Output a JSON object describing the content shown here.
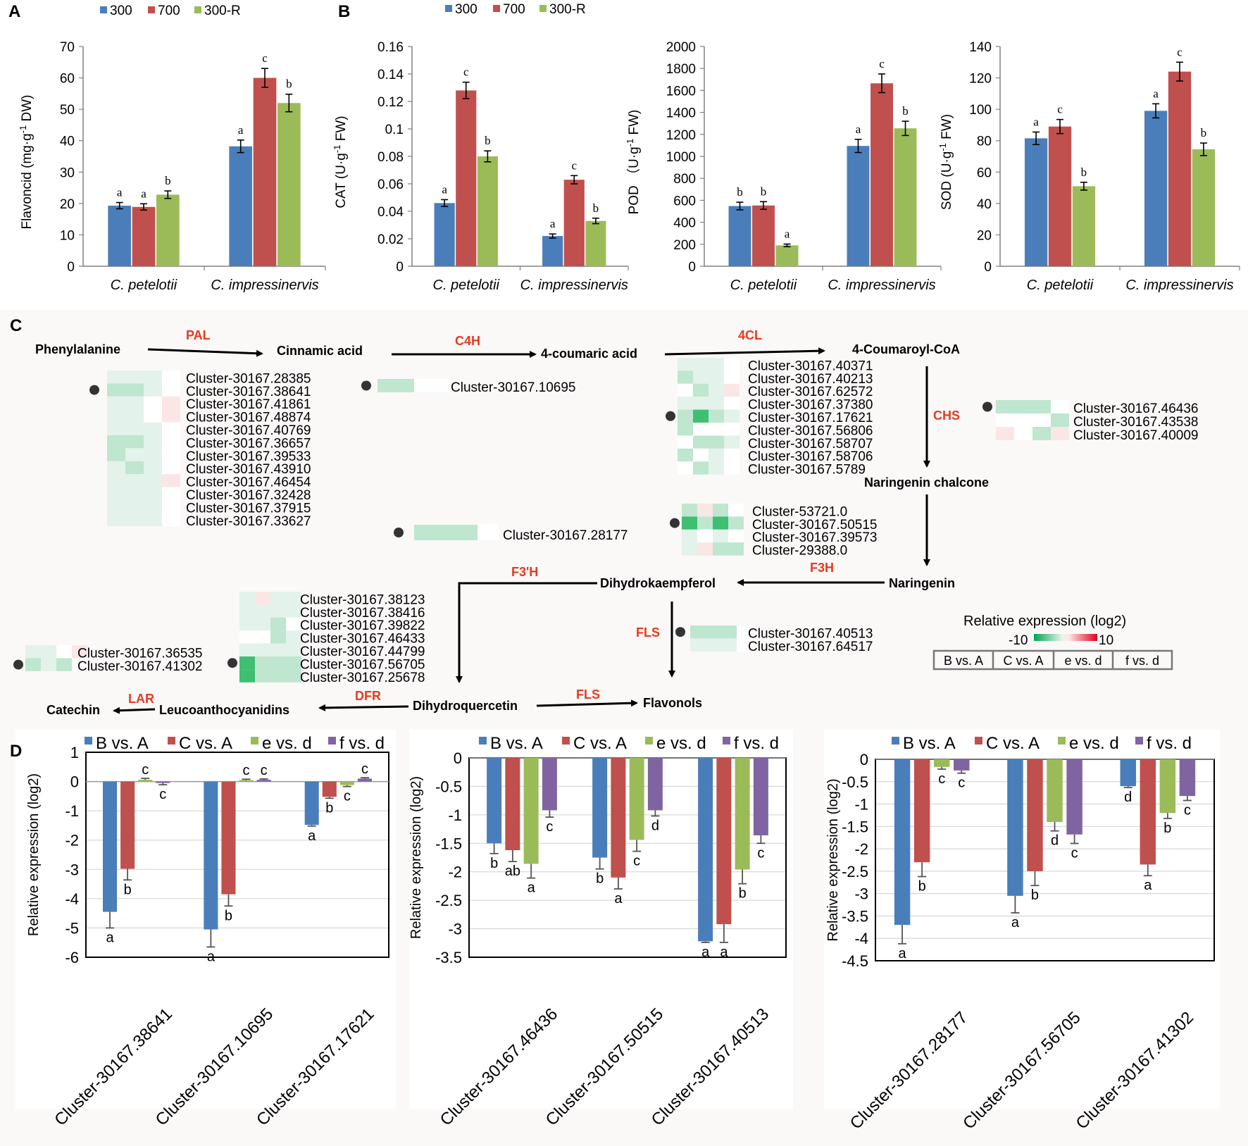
{
  "panel_labels": [
    "A",
    "B",
    "C",
    "D"
  ],
  "colors": {
    "blue": "#4a7ebb",
    "red": "#c0504d",
    "green": "#9bbb59",
    "purple": "#8064a2",
    "pathway_enzyme": "#e8391e",
    "heat_pale": "#e3f2ea",
    "heat_mid": "#bfe6cf",
    "heat_strong": "#3ebf72",
    "heat_red": "#fbe6e6"
  },
  "legend_ab": [
    "300",
    "700",
    "300-R"
  ],
  "legend_d": [
    "B vs. A",
    "C vs. A",
    "e vs. d",
    "f vs. d"
  ],
  "species": [
    "C. petelotii",
    "C. impressinervis"
  ],
  "chart_data": [
    {
      "id": "flavoncid",
      "panel": "A",
      "type": "bar",
      "ylabel_main": "Flavoncid (mg·g",
      "ylabel_sup": "-1",
      "ylabel_tail": " DW)",
      "ylim": [
        0,
        70
      ],
      "ticks": [
        "0",
        "10",
        "20",
        "30",
        "40",
        "50",
        "60",
        "70"
      ],
      "categories": [
        "C. petelotii",
        "C. impressinervis"
      ],
      "series": [
        {
          "name": "300",
          "values": [
            19.3,
            38.2
          ],
          "errors": [
            1.0,
            2.0
          ],
          "letters": [
            "a",
            "a"
          ]
        },
        {
          "name": "700",
          "values": [
            18.9,
            60.0
          ],
          "errors": [
            1.0,
            3.0
          ],
          "letters": [
            "a",
            "c"
          ]
        },
        {
          "name": "300-R",
          "values": [
            22.8,
            52.0
          ],
          "errors": [
            1.2,
            2.8
          ],
          "letters": [
            "b",
            "b"
          ]
        }
      ]
    },
    {
      "id": "cat",
      "panel": "B",
      "type": "bar",
      "ylabel_main": "CAT (U·g",
      "ylabel_sup": "-1",
      "ylabel_tail": " FW)",
      "ylim": [
        0,
        0.16
      ],
      "ticks": [
        "0",
        "0.02",
        "0.04",
        "0.06",
        "0.08",
        "0.1",
        "0.12",
        "0.14",
        "0.16"
      ],
      "categories": [
        "C. petelotii",
        "C. impressinervis"
      ],
      "series": [
        {
          "name": "300",
          "values": [
            0.046,
            0.022
          ],
          "errors": [
            0.0025,
            0.0015
          ],
          "letters": [
            "a",
            "a"
          ]
        },
        {
          "name": "700",
          "values": [
            0.128,
            0.063
          ],
          "errors": [
            0.006,
            0.003
          ],
          "letters": [
            "c",
            "c"
          ]
        },
        {
          "name": "300-R",
          "values": [
            0.08,
            0.033
          ],
          "errors": [
            0.004,
            0.002
          ],
          "letters": [
            "b",
            "b"
          ]
        }
      ]
    },
    {
      "id": "pod",
      "panel": "B",
      "type": "bar",
      "ylabel_main": "POD （U·g",
      "ylabel_sup": "-1",
      "ylabel_tail": " FW)",
      "ylim": [
        0,
        2000
      ],
      "ticks": [
        "0",
        "200",
        "400",
        "600",
        "800",
        "1000",
        "1200",
        "1400",
        "1600",
        "1800",
        "2000"
      ],
      "categories": [
        "C. petelotii",
        "C. impressinervis"
      ],
      "series": [
        {
          "name": "300",
          "values": [
            548,
            1095
          ],
          "errors": [
            35,
            60
          ],
          "letters": [
            "b",
            "a"
          ]
        },
        {
          "name": "700",
          "values": [
            553,
            1665
          ],
          "errors": [
            35,
            85
          ],
          "letters": [
            "b",
            "c"
          ]
        },
        {
          "name": "300-R",
          "values": [
            190,
            1255
          ],
          "errors": [
            12,
            65
          ],
          "letters": [
            "a",
            "b"
          ]
        }
      ]
    },
    {
      "id": "sod",
      "panel": "B",
      "type": "bar",
      "ylabel_main": "SOD (U·g",
      "ylabel_sup": "-1",
      "ylabel_tail": " FW)",
      "ylim": [
        0,
        140
      ],
      "ticks": [
        "0",
        "20",
        "40",
        "60",
        "80",
        "100",
        "120",
        "140"
      ],
      "categories": [
        "C. petelotii",
        "C. impressinervis"
      ],
      "series": [
        {
          "name": "300",
          "values": [
            81.5,
            99.0
          ],
          "errors": [
            4.0,
            4.5
          ],
          "letters": [
            "a",
            "a"
          ]
        },
        {
          "name": "700",
          "values": [
            89.0,
            124.0
          ],
          "errors": [
            4.5,
            6.0
          ],
          "letters": [
            "c",
            "c"
          ]
        },
        {
          "name": "300-R",
          "values": [
            51.0,
            74.5
          ],
          "errors": [
            2.5,
            4.0
          ],
          "letters": [
            "b",
            "b"
          ]
        }
      ]
    },
    {
      "id": "qpcr1",
      "panel": "D",
      "type": "bar",
      "ylabel": "Relative expression (log2)",
      "ylim": [
        -6,
        1
      ],
      "ticks": [
        "1",
        "0",
        "-1",
        "-2",
        "-3",
        "-4",
        "-5",
        "-6"
      ],
      "categories": [
        "Cluster-30167.38641",
        "Cluster-30167.10695",
        "Cluster-30167.17621"
      ],
      "series": [
        {
          "name": "B vs. A",
          "values": [
            -4.45,
            -5.05,
            -1.48
          ],
          "errors": [
            0.55,
            0.6,
            0.04
          ],
          "letters": [
            "a",
            "a",
            "a"
          ]
        },
        {
          "name": "C vs. A",
          "values": [
            -2.98,
            -3.85,
            -0.52
          ],
          "errors": [
            0.38,
            0.4,
            0.05
          ],
          "letters": [
            "b",
            "b",
            "b"
          ]
        },
        {
          "name": "e vs. d",
          "values": [
            0.06,
            0.05,
            -0.12
          ],
          "errors": [
            0.05,
            0.03,
            0.05
          ],
          "letters": [
            "c",
            "c",
            "c"
          ]
        },
        {
          "name": "f vs. d",
          "values": [
            -0.05,
            0.06,
            0.1
          ],
          "errors": [
            0.06,
            0.03,
            0.03
          ],
          "letters": [
            "c",
            "c",
            "c"
          ]
        }
      ]
    },
    {
      "id": "qpcr2",
      "panel": "D",
      "type": "bar",
      "ylabel": "Relative expression (log2)",
      "ylim": [
        -3.5,
        0
      ],
      "ticks": [
        "0",
        "-0.5",
        "-1",
        "-1.5",
        "-2",
        "-2.5",
        "-3",
        "-3.5"
      ],
      "categories": [
        "Cluster-30167.46436",
        "Cluster-30167.50515",
        "Cluster-30167.40513"
      ],
      "series": [
        {
          "name": "B vs. A",
          "values": [
            -1.5,
            -1.75,
            -3.22
          ],
          "errors": [
            0.18,
            0.2,
            0.02
          ],
          "letters": [
            "b",
            "b",
            "a"
          ]
        },
        {
          "name": "C vs. A",
          "values": [
            -1.62,
            -2.1,
            -2.92
          ],
          "errors": [
            0.2,
            0.2,
            0.32
          ],
          "letters": [
            "ab",
            "a",
            "a"
          ]
        },
        {
          "name": "e vs. d",
          "values": [
            -1.86,
            -1.44,
            -1.96
          ],
          "errors": [
            0.25,
            0.2,
            0.25
          ],
          "letters": [
            "a",
            "c",
            "b"
          ]
        },
        {
          "name": "f vs. d",
          "values": [
            -0.92,
            -0.92,
            -1.36
          ],
          "errors": [
            0.12,
            0.1,
            0.14
          ],
          "letters": [
            "c",
            "d",
            "c"
          ]
        }
      ]
    },
    {
      "id": "qpcr3",
      "panel": "D",
      "type": "bar",
      "ylabel": "Relative expression (log2)",
      "ylim": [
        -4.5,
        0
      ],
      "ticks": [
        "0",
        "-0.5",
        "-1",
        "-1.5",
        "-2",
        "-2.5",
        "-3",
        "-3.5",
        "-4",
        "-4.5"
      ],
      "categories": [
        "Cluster-30167.28177",
        "Cluster-30167.56705",
        "Cluster-30167.41302"
      ],
      "series": [
        {
          "name": "B vs. A",
          "values": [
            -3.7,
            -3.05,
            -0.6
          ],
          "errors": [
            0.42,
            0.38,
            0.03
          ],
          "letters": [
            "a",
            "a",
            "d"
          ]
        },
        {
          "name": "C vs. A",
          "values": [
            -2.3,
            -2.5,
            -2.35
          ],
          "errors": [
            0.32,
            0.32,
            0.25
          ],
          "letters": [
            "b",
            "b",
            "a"
          ]
        },
        {
          "name": "e vs. d",
          "values": [
            -0.17,
            -1.4,
            -1.2
          ],
          "errors": [
            0.05,
            0.2,
            0.12
          ],
          "letters": [
            "c",
            "d",
            "b"
          ]
        },
        {
          "name": "f vs. d",
          "values": [
            -0.25,
            -1.68,
            -0.82
          ],
          "errors": [
            0.06,
            0.2,
            0.1
          ],
          "letters": [
            "c",
            "c",
            "c"
          ]
        }
      ]
    }
  ],
  "pathway": {
    "compounds": {
      "phenylalanine": "Phenylalanine",
      "cinnamic_acid": "Cinnamic acid",
      "coumaric_acid": "4-coumaric acid",
      "coumaroyl_coa": "4-Coumaroyl-CoA",
      "naringenin_chalcone": "Naringenin chalcone",
      "naringenin": "Naringenin",
      "dihydrokaempferol": "Dihydrokaempferol",
      "dihydroquercetin": "Dihydroquercetin",
      "flavonols": "Flavonols",
      "leucoanthocyanidins": "Leucoanthocyanidins",
      "catechin": "Catechin"
    },
    "enzymes": {
      "pal": "PAL",
      "c4h": "C4H",
      "fourcl": "4CL",
      "chs": "CHS",
      "f3h": "F3H",
      "f3ph": "F3'H",
      "fls_main": "FLS",
      "fls_bottom": "FLS",
      "dfr": "DFR",
      "lar": "LAR"
    },
    "gene_groups": {
      "pal": [
        "Cluster-30167.28385",
        "Cluster-30167.38641",
        "Cluster-30167.41861",
        "Cluster-30167.48874",
        "Cluster-30167.40769",
        "Cluster-30167.36657",
        "Cluster-30167.39533",
        "Cluster-30167.43910",
        "Cluster-30167.46454",
        "Cluster-30167.32428",
        "Cluster-30167.37915",
        "Cluster-30167.33627"
      ],
      "c4h": [
        "Cluster-30167.10695"
      ],
      "fourcl": [
        "Cluster-30167.40371",
        "Cluster-30167.40213",
        "Cluster-30167.62572",
        "Cluster-30167.37380",
        "Cluster-30167.17621",
        "Cluster-30167.56806",
        "Cluster-30167.58707",
        "Cluster-30167.58706",
        "Cluster-30167.5789"
      ],
      "chs": [
        "Cluster-30167.46436",
        "Cluster-30167.43538",
        "Cluster-30167.40009"
      ],
      "chi": [
        "Cluster-30167.28177"
      ],
      "f3h": [
        "Cluster-53721.0",
        "Cluster-30167.50515",
        "Cluster-30167.39573",
        "Cluster-29388.0"
      ],
      "f3ph": [
        "Cluster-30167.38123",
        "Cluster-30167.38416",
        "Cluster-30167.39822",
        "Cluster-30167.46433",
        "Cluster-30167.44799",
        "Cluster-30167.56705",
        "Cluster-30167.25678"
      ],
      "lar": [
        "Cluster-30167.36535",
        "Cluster-30167.41302"
      ],
      "fls": [
        "Cluster-30167.40513",
        "Cluster-30167.64517"
      ]
    },
    "heat_legend": {
      "title": "Relative expression (log2)",
      "min": "-10",
      "max": "10",
      "columns": [
        "B vs. A",
        "C vs. A",
        "e vs. d",
        "f vs. d"
      ]
    }
  }
}
